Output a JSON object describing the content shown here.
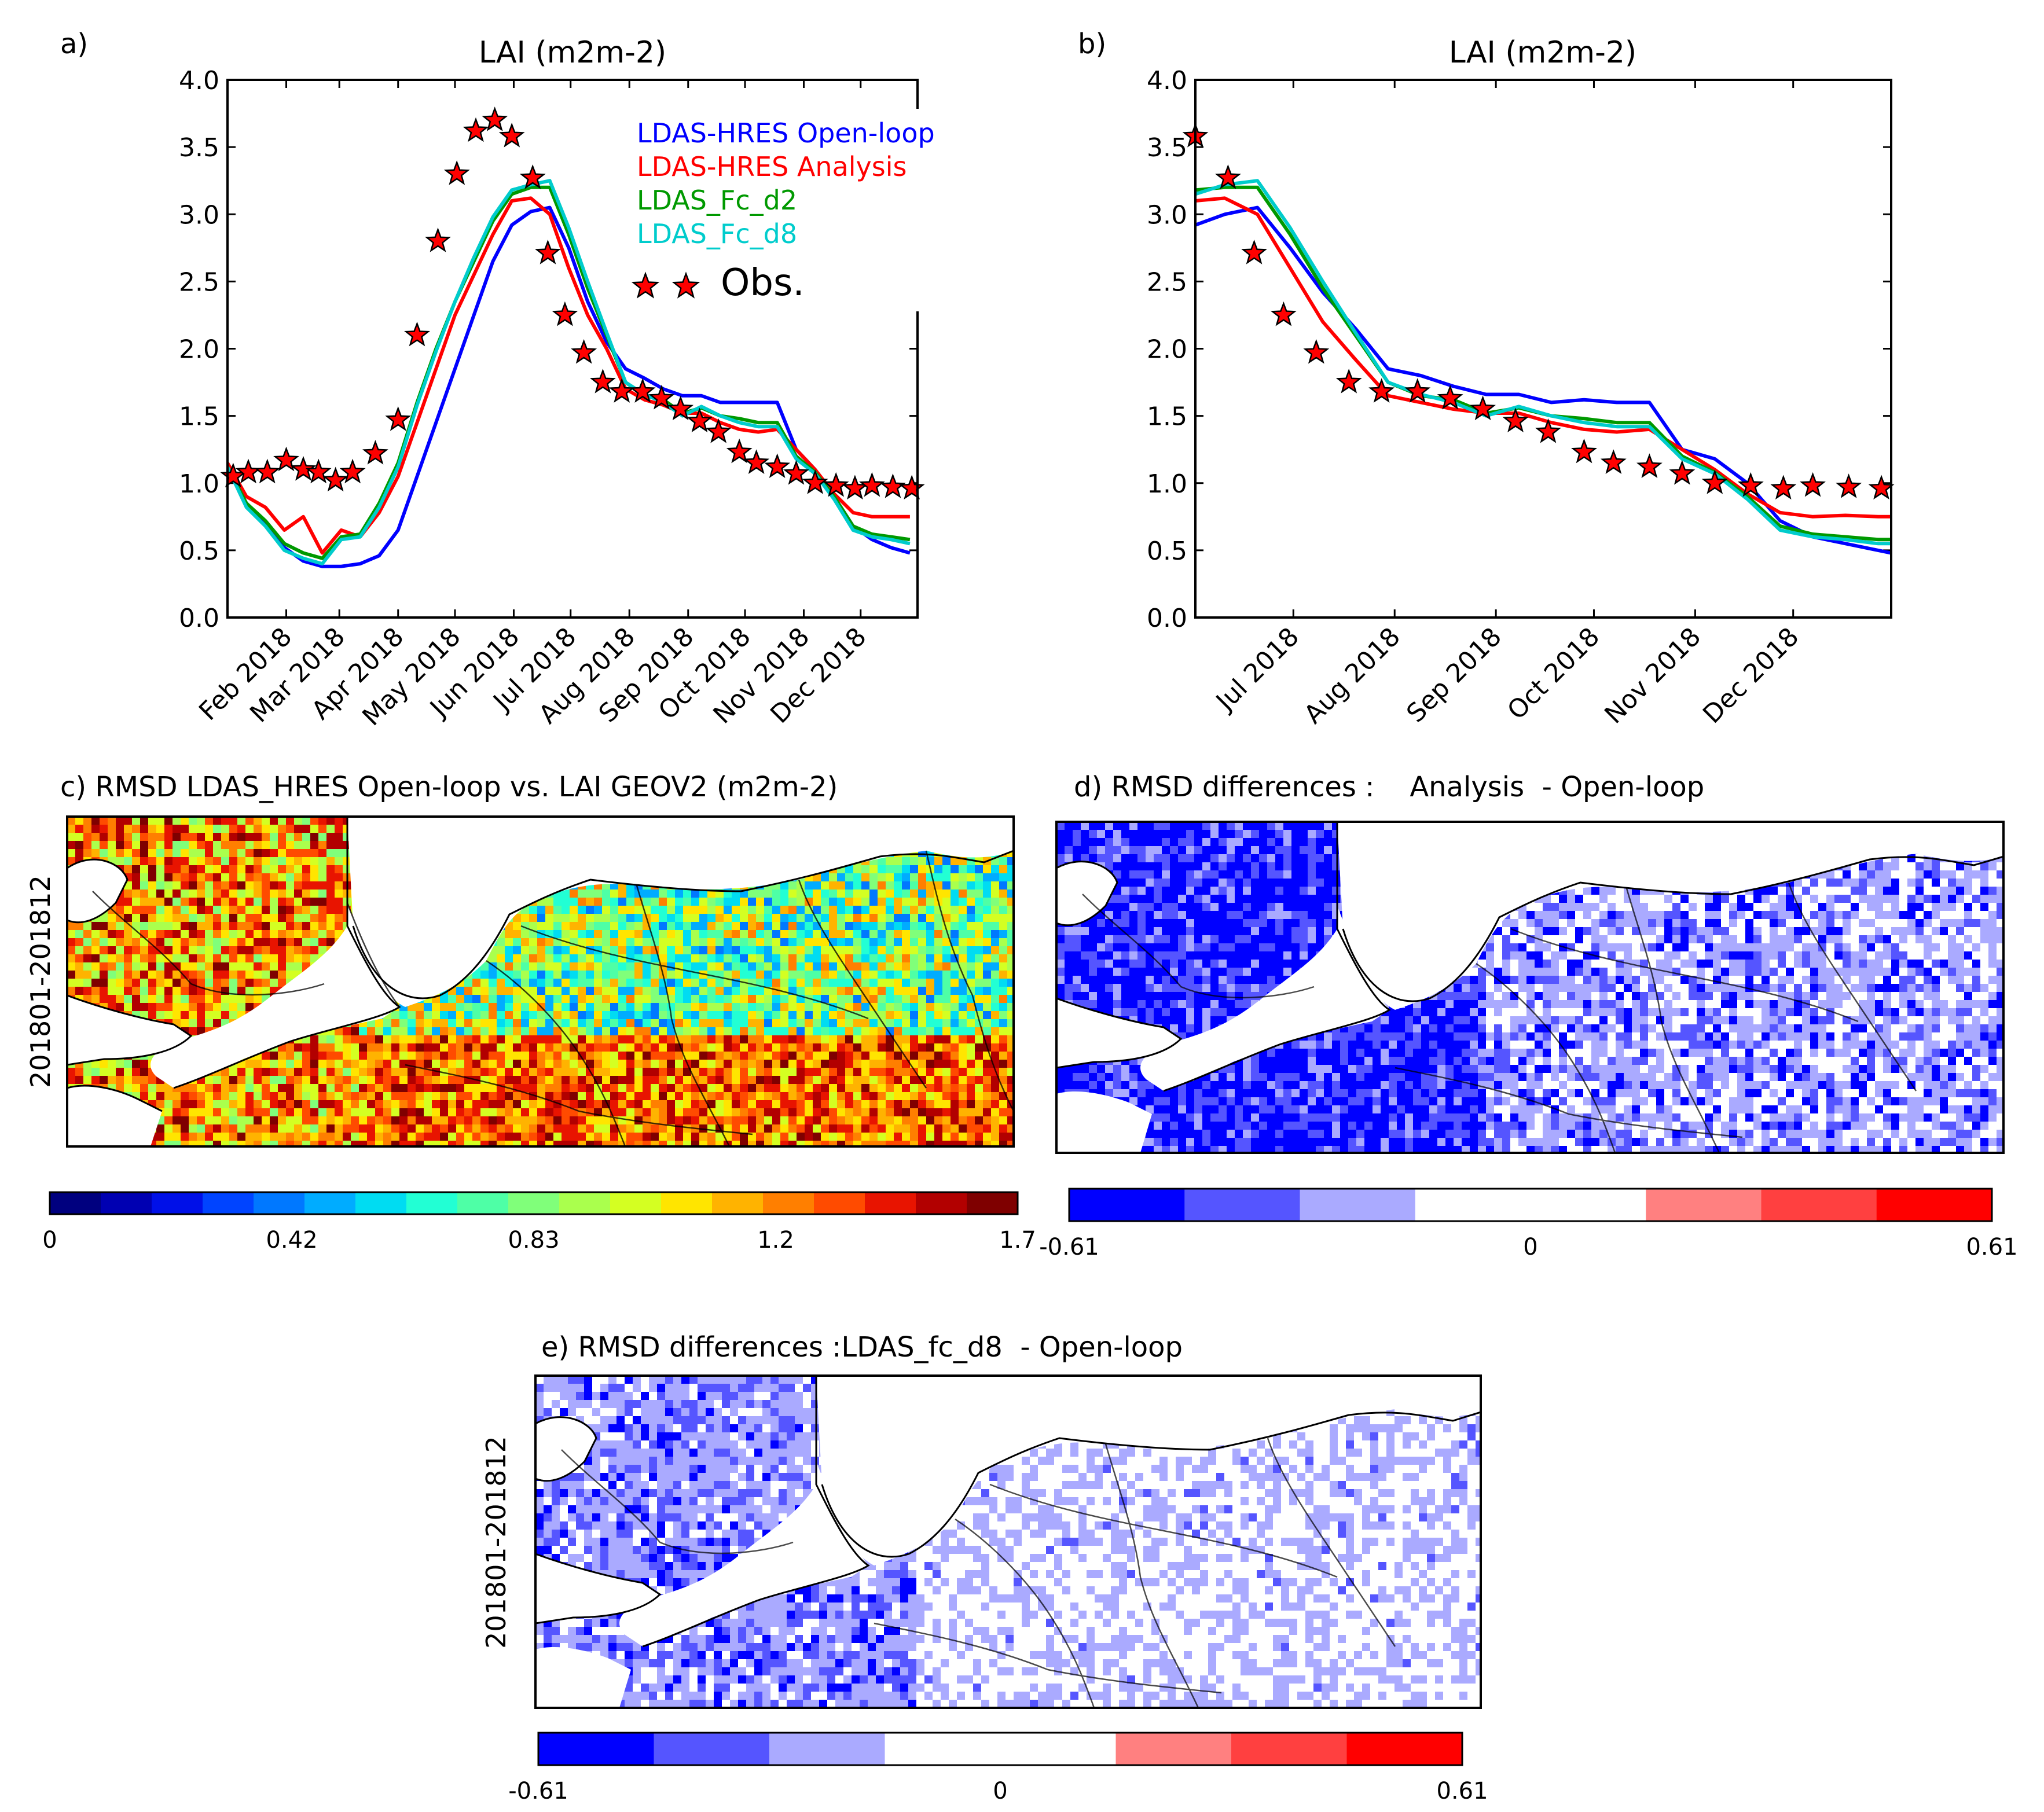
{
  "chart_data": [
    {
      "panel": "a)",
      "type": "line",
      "title": "LAI (m2m-2)",
      "ylim": [
        0,
        4
      ],
      "yticks": [
        "0.0",
        "0.5",
        "1.0",
        "1.5",
        "2.0",
        "2.5",
        "3.0",
        "3.5",
        "4.0"
      ],
      "xlim": [
        "2018-01-01",
        "2018-12-31"
      ],
      "xticks": [
        {
          "label": "Feb 2018",
          "date": "2018-02-01"
        },
        {
          "label": "Mar 2018",
          "date": "2018-03-01"
        },
        {
          "label": "Apr 2018",
          "date": "2018-04-01"
        },
        {
          "label": "May 2018",
          "date": "2018-05-01"
        },
        {
          "label": "Jun 2018",
          "date": "2018-06-01"
        },
        {
          "label": "Jul 2018",
          "date": "2018-07-01"
        },
        {
          "label": "Aug 2018",
          "date": "2018-08-01"
        },
        {
          "label": "Sep 2018",
          "date": "2018-09-01"
        },
        {
          "label": "Oct 2018",
          "date": "2018-10-01"
        },
        {
          "label": "Nov 2018",
          "date": "2018-11-01"
        },
        {
          "label": "Dec 2018",
          "date": "2018-12-01"
        }
      ],
      "dates": [
        "2018-01-01",
        "2018-01-11",
        "2018-01-21",
        "2018-01-31",
        "2018-02-10",
        "2018-02-20",
        "2018-03-02",
        "2018-03-12",
        "2018-03-22",
        "2018-04-01",
        "2018-04-11",
        "2018-04-21",
        "2018-05-01",
        "2018-05-11",
        "2018-05-21",
        "2018-05-31",
        "2018-06-10",
        "2018-06-20",
        "2018-06-30",
        "2018-07-10",
        "2018-07-20",
        "2018-07-30",
        "2018-08-09",
        "2018-08-19",
        "2018-08-29",
        "2018-09-08",
        "2018-09-18",
        "2018-09-28",
        "2018-10-08",
        "2018-10-18",
        "2018-10-28",
        "2018-11-07",
        "2018-11-17",
        "2018-11-27",
        "2018-12-07",
        "2018-12-17",
        "2018-12-27"
      ],
      "series": [
        {
          "name": "LDAS-HRES Open-loop",
          "color": "#0000ff",
          "values": [
            1.1,
            0.85,
            0.7,
            0.52,
            0.42,
            0.38,
            0.38,
            0.4,
            0.46,
            0.65,
            1.05,
            1.45,
            1.85,
            2.25,
            2.65,
            2.92,
            3.02,
            3.05,
            2.75,
            2.35,
            2.05,
            1.85,
            1.78,
            1.7,
            1.65,
            1.65,
            1.6,
            1.6,
            1.6,
            1.6,
            1.25,
            1.1,
            0.9,
            0.68,
            0.58,
            0.52,
            0.48
          ]
        },
        {
          "name": "LDAS-HRES Analysis",
          "color": "#ff0000",
          "values": [
            1.15,
            0.9,
            0.82,
            0.65,
            0.75,
            0.48,
            0.65,
            0.6,
            0.78,
            1.05,
            1.45,
            1.85,
            2.25,
            2.55,
            2.85,
            3.1,
            3.12,
            3.0,
            2.6,
            2.25,
            2.0,
            1.7,
            1.62,
            1.58,
            1.52,
            1.52,
            1.45,
            1.4,
            1.38,
            1.4,
            1.25,
            1.1,
            0.92,
            0.78,
            0.75,
            0.75,
            0.75
          ]
        },
        {
          "name": "LDAS_Fc_d2",
          "color": "#009900",
          "values": [
            1.12,
            0.85,
            0.72,
            0.55,
            0.48,
            0.44,
            0.6,
            0.62,
            0.85,
            1.15,
            1.6,
            2.0,
            2.35,
            2.65,
            2.95,
            3.15,
            3.2,
            3.2,
            2.85,
            2.45,
            2.1,
            1.75,
            1.65,
            1.62,
            1.52,
            1.56,
            1.5,
            1.48,
            1.45,
            1.45,
            1.2,
            1.08,
            0.9,
            0.68,
            0.62,
            0.6,
            0.58
          ]
        },
        {
          "name": "LDAS_Fc_d8",
          "color": "#00cccc",
          "values": [
            1.12,
            0.82,
            0.68,
            0.5,
            0.44,
            0.4,
            0.58,
            0.6,
            0.82,
            1.12,
            1.58,
            1.98,
            2.35,
            2.68,
            2.98,
            3.18,
            3.22,
            3.25,
            2.9,
            2.5,
            2.12,
            1.75,
            1.66,
            1.6,
            1.5,
            1.57,
            1.5,
            1.45,
            1.42,
            1.42,
            1.18,
            1.07,
            0.88,
            0.65,
            0.6,
            0.58,
            0.55
          ]
        }
      ],
      "observations": {
        "name": "Obs.",
        "color": "#ff0000",
        "dates": [
          "2018-01-04",
          "2018-01-12",
          "2018-01-22",
          "2018-02-01",
          "2018-02-10",
          "2018-02-18",
          "2018-02-27",
          "2018-03-08",
          "2018-03-20",
          "2018-04-01",
          "2018-04-11",
          "2018-04-22",
          "2018-05-02",
          "2018-05-12",
          "2018-05-22",
          "2018-05-31",
          "2018-06-11",
          "2018-06-19",
          "2018-06-28",
          "2018-07-08",
          "2018-07-18",
          "2018-07-28",
          "2018-08-08",
          "2018-08-18",
          "2018-08-28",
          "2018-09-07",
          "2018-09-17",
          "2018-09-28",
          "2018-10-07",
          "2018-10-18",
          "2018-10-28",
          "2018-11-07",
          "2018-11-18",
          "2018-11-28",
          "2018-12-07",
          "2018-12-18",
          "2018-12-28"
        ],
        "values": [
          1.05,
          1.08,
          1.08,
          1.17,
          1.1,
          1.08,
          1.02,
          1.08,
          1.22,
          1.47,
          2.1,
          2.8,
          3.3,
          3.62,
          3.7,
          3.58,
          3.27,
          2.71,
          2.25,
          1.97,
          1.75,
          1.68,
          1.68,
          1.63,
          1.55,
          1.46,
          1.38,
          1.23,
          1.15,
          1.12,
          1.07,
          1.0,
          0.98,
          0.96,
          0.98,
          0.97,
          0.96
        ]
      },
      "legend_location": "upper-right"
    },
    {
      "panel": "b)",
      "type": "line",
      "title": "LAI (m2m-2)",
      "ylim": [
        0,
        4
      ],
      "yticks": [
        "0.0",
        "0.5",
        "1.0",
        "1.5",
        "2.0",
        "2.5",
        "3.0",
        "3.5",
        "4.0"
      ],
      "xlim": [
        "2018-06-01",
        "2018-12-31"
      ],
      "xticks": [
        {
          "label": "Jul 2018",
          "date": "2018-07-01"
        },
        {
          "label": "Aug 2018",
          "date": "2018-08-01"
        },
        {
          "label": "Sep 2018",
          "date": "2018-09-01"
        },
        {
          "label": "Oct 2018",
          "date": "2018-10-01"
        },
        {
          "label": "Nov 2018",
          "date": "2018-11-01"
        },
        {
          "label": "Dec 2018",
          "date": "2018-12-01"
        }
      ],
      "dates": [
        "2018-06-01",
        "2018-06-10",
        "2018-06-20",
        "2018-06-30",
        "2018-07-10",
        "2018-07-20",
        "2018-07-30",
        "2018-08-09",
        "2018-08-19",
        "2018-08-29",
        "2018-09-08",
        "2018-09-18",
        "2018-09-28",
        "2018-10-08",
        "2018-10-18",
        "2018-10-28",
        "2018-11-07",
        "2018-11-17",
        "2018-11-27",
        "2018-12-07",
        "2018-12-17",
        "2018-12-27",
        "2018-12-31"
      ],
      "series": [
        {
          "name": "LDAS-HRES Open-loop",
          "color": "#0000ff",
          "values": [
            2.92,
            3.0,
            3.05,
            2.75,
            2.42,
            2.15,
            1.85,
            1.8,
            1.72,
            1.66,
            1.66,
            1.6,
            1.62,
            1.6,
            1.6,
            1.25,
            1.18,
            1.0,
            0.72,
            0.6,
            0.55,
            0.5,
            0.48
          ]
        },
        {
          "name": "LDAS-HRES Analysis",
          "color": "#ff0000",
          "values": [
            3.1,
            3.12,
            3.0,
            2.6,
            2.2,
            1.92,
            1.65,
            1.6,
            1.55,
            1.52,
            1.52,
            1.45,
            1.4,
            1.38,
            1.4,
            1.25,
            1.1,
            0.92,
            0.78,
            0.75,
            0.76,
            0.75,
            0.75
          ]
        },
        {
          "name": "LDAS_Fc_d2",
          "color": "#009900",
          "values": [
            3.18,
            3.2,
            3.2,
            2.85,
            2.45,
            2.1,
            1.75,
            1.65,
            1.62,
            1.52,
            1.56,
            1.5,
            1.48,
            1.45,
            1.45,
            1.2,
            1.08,
            0.9,
            0.68,
            0.62,
            0.6,
            0.58,
            0.58
          ]
        },
        {
          "name": "LDAS_Fc_d8",
          "color": "#00cccc",
          "values": [
            3.15,
            3.22,
            3.25,
            2.9,
            2.5,
            2.12,
            1.75,
            1.66,
            1.6,
            1.5,
            1.57,
            1.5,
            1.45,
            1.42,
            1.42,
            1.18,
            1.07,
            0.88,
            0.65,
            0.6,
            0.58,
            0.55,
            0.55
          ]
        }
      ],
      "observations": {
        "name": "Obs.",
        "color": "#ff0000",
        "dates": [
          "2018-06-01",
          "2018-06-11",
          "2018-06-19",
          "2018-06-28",
          "2018-07-08",
          "2018-07-18",
          "2018-07-28",
          "2018-08-08",
          "2018-08-18",
          "2018-08-28",
          "2018-09-07",
          "2018-09-17",
          "2018-09-28",
          "2018-10-07",
          "2018-10-18",
          "2018-10-28",
          "2018-11-07",
          "2018-11-18",
          "2018-11-28",
          "2018-12-07",
          "2018-12-18",
          "2018-12-28"
        ],
        "values": [
          3.58,
          3.27,
          2.71,
          2.25,
          1.97,
          1.75,
          1.68,
          1.68,
          1.63,
          1.55,
          1.46,
          1.38,
          1.23,
          1.15,
          1.12,
          1.07,
          1.0,
          0.98,
          0.96,
          0.98,
          0.97,
          0.96
        ]
      }
    },
    {
      "panel": "c)",
      "type": "heatmap",
      "title": "c) RMSD LDAS_HRES Open-loop vs. LAI GEOV2 (m2m-2)",
      "ylabel": "201801-201812",
      "colorbar_ticks": [
        "0",
        "0.42",
        "0.83",
        "1.2",
        "1.7"
      ],
      "colorbar_colors": [
        "#00007f",
        "#0000b2",
        "#0010e8",
        "#0044ff",
        "#0078ff",
        "#00acff",
        "#00dcf2",
        "#22ffd4",
        "#4effa6",
        "#80ff7a",
        "#aaff4d",
        "#d4ff22",
        "#ffe500",
        "#ffb300",
        "#ff7f00",
        "#ff4b00",
        "#e81400",
        "#b20000",
        "#7f0000"
      ]
    },
    {
      "panel": "d)",
      "type": "heatmap",
      "title": "d) RMSD differences :    Analysis  - Open-loop",
      "colorbar_ticks": [
        "-0.61",
        "0",
        "0.61"
      ],
      "colorbar_colors": [
        "#0000ff",
        "#5555ff",
        "#aaaaff",
        "#ffffff",
        "#ffffff",
        "#ff8080",
        "#ff4040",
        "#ff0000"
      ]
    },
    {
      "panel": "e)",
      "type": "heatmap",
      "title": "e) RMSD differences :LDAS_fc_d8  - Open-loop",
      "ylabel": "201801-201812",
      "colorbar_ticks": [
        "-0.61",
        "0",
        "0.61"
      ],
      "colorbar_colors": [
        "#0000ff",
        "#5555ff",
        "#aaaaff",
        "#ffffff",
        "#ffffff",
        "#ff8080",
        "#ff4040",
        "#ff0000"
      ]
    }
  ],
  "panel_labels": {
    "a": "a)",
    "b": "b)"
  },
  "colors": {
    "obs_star": "#ff0000",
    "map_land": "#ffffff",
    "outline": "#000000"
  }
}
